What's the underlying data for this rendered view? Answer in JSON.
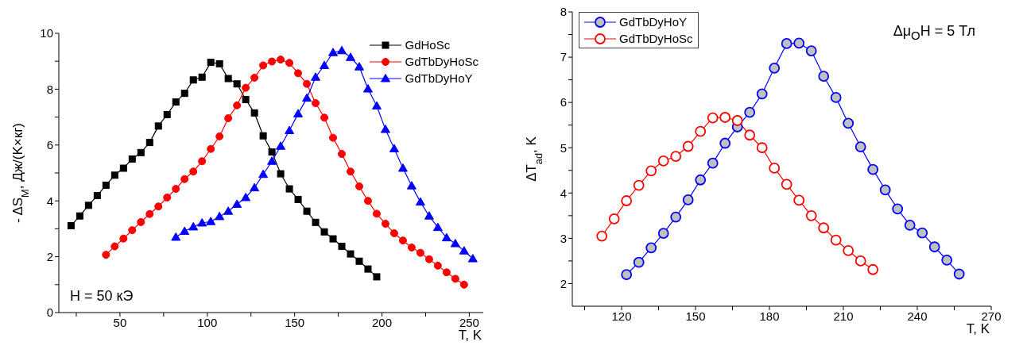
{
  "chart_data": [
    {
      "type": "line",
      "xlabel": "T, K",
      "ylabel": "- ΔS$_{M}$, Дж/(K×кг)",
      "xlim": [
        15,
        258
      ],
      "xticks": [
        {
          "value": 25,
          "label": null
        },
        50,
        {
          "value": 75,
          "label": null
        },
        100,
        {
          "value": 125,
          "label": null
        },
        150,
        {
          "value": 175,
          "label": null
        },
        200,
        {
          "value": 225,
          "label": null
        },
        250
      ],
      "ylim": [
        0,
        10
      ],
      "yticks": [
        0,
        {
          "value": 1,
          "label": null
        },
        2,
        {
          "value": 3,
          "label": null
        },
        4,
        {
          "value": 5,
          "label": null
        },
        6,
        {
          "value": 7,
          "label": null
        },
        8,
        {
          "value": 9,
          "label": null
        },
        10
      ],
      "legend": "top right",
      "annotations": [
        "H = 50 кЭ"
      ],
      "series": [
        {
          "name": "GdHoSc",
          "color": "#000000",
          "marker": "square",
          "x": [
            22,
            27,
            32,
            37,
            42,
            47,
            52,
            57,
            62,
            67,
            72,
            77,
            82,
            87,
            92,
            97,
            102,
            107,
            112,
            117,
            122,
            127,
            132,
            137,
            142,
            147,
            152,
            157,
            162,
            167,
            172,
            177,
            182,
            187,
            192,
            197
          ],
          "values": [
            3.11,
            3.46,
            3.84,
            4.19,
            4.56,
            4.92,
            5.17,
            5.5,
            5.73,
            6.09,
            6.68,
            7.09,
            7.54,
            7.85,
            8.33,
            8.43,
            8.96,
            8.91,
            8.38,
            8.19,
            7.63,
            7.15,
            6.33,
            5.75,
            4.97,
            4.43,
            4.05,
            3.63,
            3.23,
            2.89,
            2.64,
            2.37,
            2.1,
            1.84,
            1.56,
            1.28
          ]
        },
        {
          "name": "GdTbDyHoSc",
          "color": "#ff0000",
          "marker": "circle",
          "x": [
            42,
            47,
            52,
            57,
            62,
            67,
            72,
            77,
            82,
            87,
            92,
            97,
            102,
            107,
            112,
            117,
            122,
            127,
            132,
            137,
            142,
            147,
            152,
            157,
            162,
            167,
            172,
            177,
            182,
            187,
            192,
            197,
            202,
            207,
            212,
            217,
            222,
            227,
            232,
            237,
            242,
            247
          ],
          "values": [
            2.07,
            2.37,
            2.65,
            2.95,
            3.24,
            3.53,
            3.8,
            4.12,
            4.43,
            4.78,
            5.05,
            5.42,
            5.86,
            6.31,
            6.96,
            7.42,
            8.05,
            8.41,
            8.85,
            8.99,
            9.06,
            8.94,
            8.57,
            8.19,
            7.5,
            6.98,
            6.26,
            5.68,
            5.05,
            4.52,
            4.0,
            3.54,
            3.18,
            2.84,
            2.58,
            2.33,
            2.14,
            1.91,
            1.68,
            1.44,
            1.21,
            1.0
          ]
        },
        {
          "name": "GdTbDyHoY",
          "color": "#0000ff",
          "marker": "triangle",
          "x": [
            82,
            87,
            92,
            97,
            102,
            107,
            112,
            117,
            122,
            127,
            132,
            137,
            142,
            147,
            152,
            157,
            162,
            167,
            172,
            177,
            182,
            187,
            192,
            197,
            202,
            207,
            212,
            217,
            222,
            227,
            232,
            237,
            242,
            247,
            252
          ],
          "values": [
            2.7,
            2.91,
            3.07,
            3.21,
            3.26,
            3.44,
            3.63,
            3.88,
            4.12,
            4.47,
            4.95,
            5.42,
            5.96,
            6.52,
            7.12,
            7.68,
            8.43,
            8.85,
            9.31,
            9.38,
            9.14,
            8.8,
            8.01,
            7.4,
            6.56,
            5.87,
            5.17,
            4.54,
            3.96,
            3.46,
            3.05,
            2.68,
            2.47,
            2.21,
            1.93
          ]
        }
      ]
    },
    {
      "type": "line",
      "xlabel": "T, K",
      "ylabel": "ΔT$_{ad}$, K",
      "xlim": [
        100,
        270
      ],
      "xticks": [
        {
          "value": 105,
          "label": null
        },
        120,
        {
          "value": 135,
          "label": null
        },
        150,
        {
          "value": 165,
          "label": null
        },
        180,
        {
          "value": 195,
          "label": null
        },
        210,
        {
          "value": 225,
          "label": null
        },
        240,
        {
          "value": 255,
          "label": null
        },
        270
      ],
      "ylim": [
        1.5,
        8
      ],
      "yticks": [
        2,
        {
          "value": 2.5,
          "label": null
        },
        3,
        {
          "value": 3.5,
          "label": null
        },
        4,
        {
          "value": 4.5,
          "label": null
        },
        5,
        {
          "value": 5.5,
          "label": null
        },
        6,
        {
          "value": 6.5,
          "label": null
        },
        7,
        {
          "value": 7.5,
          "label": null
        },
        8
      ],
      "legend": "top left",
      "annotations": [
        "Δμ$_{O}$H = 5 Тл"
      ],
      "marker": "circle",
      "series": [
        {
          "name": "GdTbDyHoY",
          "color": "#0000ff",
          "x": [
            122,
            127,
            132,
            137,
            142,
            147,
            152,
            157,
            162,
            167,
            172,
            177,
            182,
            187,
            192,
            197,
            202,
            207,
            212,
            217,
            222,
            227,
            232,
            237,
            242,
            247,
            252,
            257
          ],
          "values": [
            2.2,
            2.47,
            2.79,
            3.11,
            3.47,
            3.85,
            4.29,
            4.66,
            5.1,
            5.46,
            5.78,
            6.19,
            6.76,
            7.3,
            7.31,
            7.14,
            6.58,
            6.11,
            5.54,
            5.02,
            4.52,
            4.07,
            3.65,
            3.29,
            3.12,
            2.81,
            2.52,
            2.21
          ]
        },
        {
          "name": "GdTbDyHoSc",
          "color": "#ff0000",
          "x": [
            112,
            117,
            122,
            127,
            132,
            137,
            142,
            147,
            152,
            157,
            162,
            167,
            172,
            177,
            182,
            187,
            192,
            197,
            202,
            207,
            212,
            217,
            222
          ],
          "values": [
            3.05,
            3.43,
            3.83,
            4.17,
            4.49,
            4.71,
            4.81,
            5.03,
            5.36,
            5.66,
            5.67,
            5.6,
            5.28,
            5.0,
            4.55,
            4.19,
            3.84,
            3.5,
            3.23,
            2.96,
            2.73,
            2.5,
            2.31
          ]
        }
      ]
    }
  ]
}
